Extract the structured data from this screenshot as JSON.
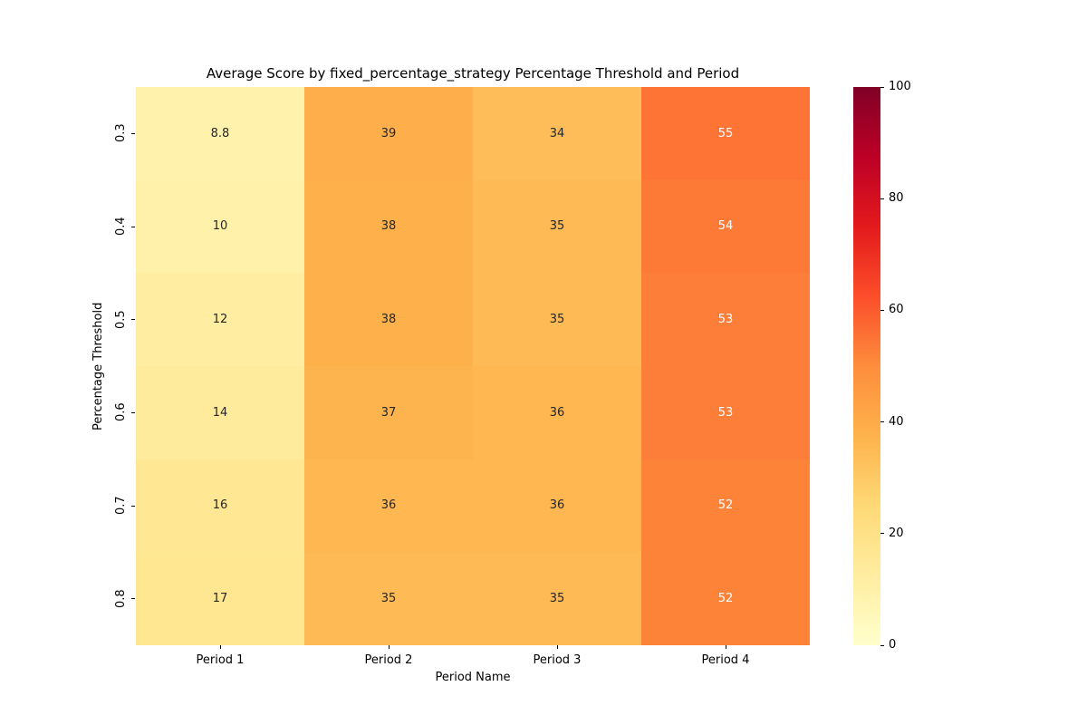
{
  "chart_data": {
    "type": "heatmap",
    "title": "Average Score by fixed_percentage_strategy Percentage Threshold and Period",
    "xlabel": "Period Name",
    "ylabel": "Percentage Threshold",
    "columns": [
      "Period 1",
      "Period 2",
      "Period 3",
      "Period 4"
    ],
    "rows": [
      "0.3",
      "0.4",
      "0.5",
      "0.6",
      "0.7",
      "0.8"
    ],
    "values": [
      [
        8.8,
        39,
        34,
        55
      ],
      [
        10,
        38,
        35,
        54
      ],
      [
        12,
        38,
        35,
        53
      ],
      [
        14,
        37,
        36,
        53
      ],
      [
        16,
        36,
        36,
        52
      ],
      [
        17,
        35,
        35,
        52
      ]
    ],
    "labels": [
      [
        "8.8",
        "39",
        "34",
        "55"
      ],
      [
        "10",
        "38",
        "35",
        "54"
      ],
      [
        "12",
        "38",
        "35",
        "53"
      ],
      [
        "14",
        "37",
        "36",
        "53"
      ],
      [
        "16",
        "36",
        "36",
        "52"
      ],
      [
        "17",
        "35",
        "35",
        "52"
      ]
    ],
    "colormap": "YlOrRd",
    "vmin": 0,
    "vmax": 100,
    "colorbar_ticks": [
      "0",
      "20",
      "40",
      "60",
      "80",
      "100"
    ],
    "legend_position": "right",
    "grid": false
  },
  "colors": {
    "annot_dark": "#262626",
    "annot_light": "#ffffff",
    "colormap_stops": [
      "#ffffcc",
      "#ffeda0",
      "#fed976",
      "#feb24c",
      "#fd8d3c",
      "#fc4e2a",
      "#e31a1c",
      "#bd0026",
      "#800026"
    ]
  }
}
